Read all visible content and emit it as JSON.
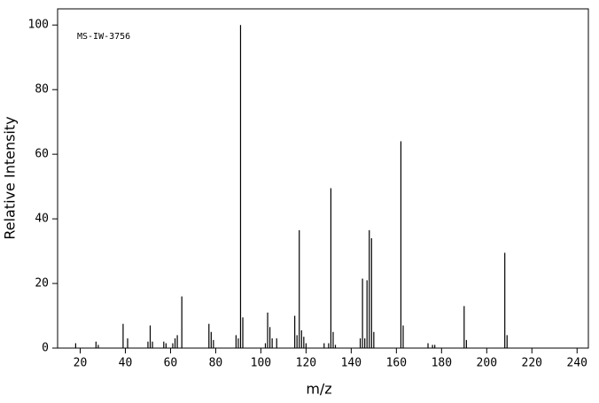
{
  "chart_data": {
    "type": "stem",
    "annotation": "MS-IW-3756",
    "xlabel": "m/z",
    "ylabel": "Relative Intensity",
    "color": "#000000",
    "x": [
      18,
      27,
      28,
      39,
      41,
      50,
      51,
      52,
      57,
      58,
      61,
      62,
      63,
      65,
      77,
      78,
      79,
      89,
      90,
      91,
      92,
      102,
      103,
      104,
      105,
      107,
      115,
      116,
      117,
      118,
      119,
      120,
      128,
      130,
      131,
      132,
      133,
      144,
      145,
      146,
      147,
      148,
      149,
      150,
      162,
      163,
      174,
      176,
      177,
      190,
      191,
      208,
      209
    ],
    "values": [
      1.5,
      2,
      1,
      7.5,
      3,
      2,
      7,
      2,
      2,
      1.5,
      1.5,
      3,
      4,
      16,
      7.5,
      5,
      2.5,
      4,
      3,
      100,
      9.5,
      1.5,
      11,
      6.5,
      3,
      3,
      10,
      4,
      36.5,
      5.5,
      3.5,
      1.5,
      1.5,
      1.5,
      49.5,
      5,
      1,
      3,
      21.5,
      3,
      21,
      36.5,
      34,
      5,
      64,
      7,
      1.5,
      1,
      1,
      13,
      2.5,
      29.5,
      4
    ],
    "xlim": [
      10,
      245
    ],
    "ylim": [
      0,
      105
    ],
    "xticks": [
      20,
      40,
      60,
      80,
      100,
      120,
      140,
      160,
      180,
      200,
      220,
      240
    ],
    "yticks": [
      0,
      20,
      40,
      60,
      80,
      100
    ]
  }
}
